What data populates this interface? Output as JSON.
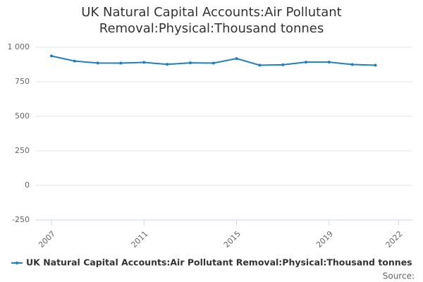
{
  "chart_data": {
    "type": "line",
    "title": "UK Natural Capital Accounts:Air Pollutant Removal:Physical:Thousand tonnes",
    "x": [
      2007,
      2008,
      2009,
      2010,
      2011,
      2012,
      2013,
      2014,
      2015,
      2016,
      2017,
      2018,
      2019,
      2020,
      2021
    ],
    "series": [
      {
        "name": "UK Natural Capital Accounts:Air Pollutant Removal:Physical:Thousand tonnes",
        "color": "#1f7fc0",
        "values": [
          937,
          900,
          886,
          885,
          890,
          876,
          887,
          885,
          918,
          870,
          873,
          892,
          892,
          875,
          870
        ]
      }
    ],
    "xlim": [
      2006.3,
      2022.6
    ],
    "xticks": [
      2007,
      2011,
      2015,
      2019,
      2022
    ],
    "ylim": [
      -250,
      1000
    ],
    "yticks": [
      -250,
      0,
      250,
      500,
      750,
      {
        "value": 1000,
        "label": "1 000"
      }
    ],
    "grid": true,
    "legend": "bottom",
    "source": "Source:"
  }
}
